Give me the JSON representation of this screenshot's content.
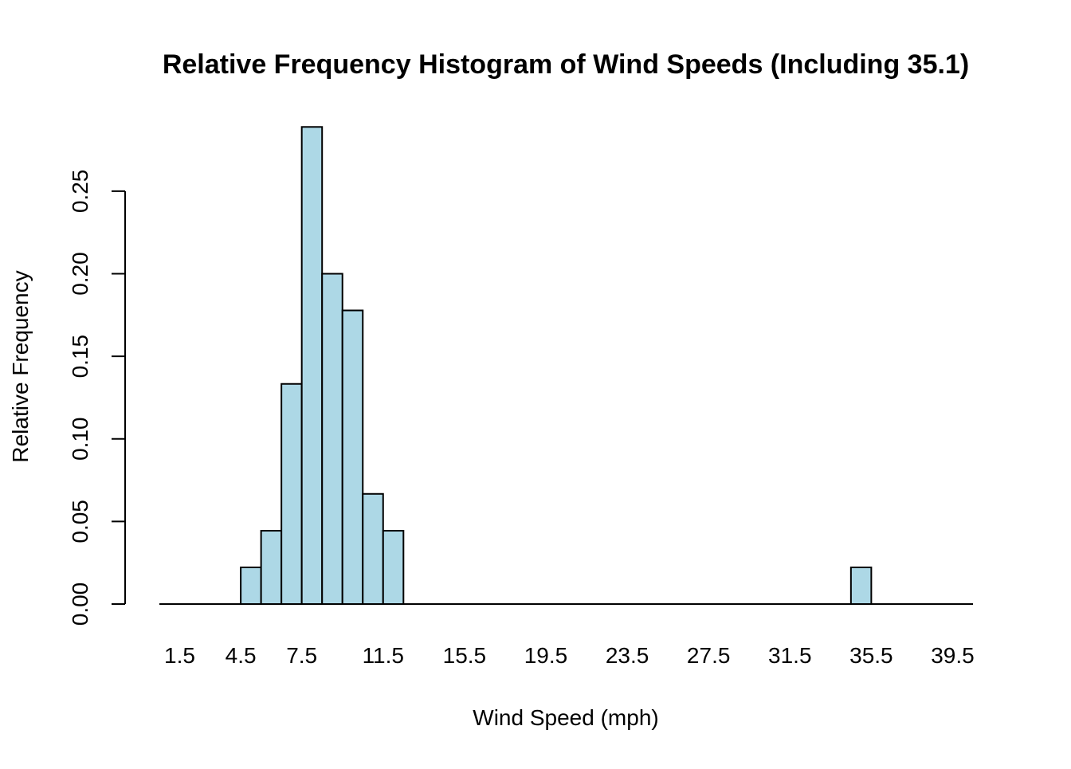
{
  "chart_data": {
    "type": "bar",
    "title": "Relative Frequency Histogram of Wind Speeds (Including 35.1)",
    "xlabel": "Wind Speed (mph)",
    "ylabel": "Relative Frequency",
    "bin_width": 1,
    "xlim": [
      0.5,
      40.5
    ],
    "ylim": [
      0,
      0.29
    ],
    "x_ticks": [
      1.5,
      4.5,
      7.5,
      11.5,
      15.5,
      19.5,
      23.5,
      27.5,
      31.5,
      35.5,
      39.5
    ],
    "x_tick_labels": [
      "1.5",
      "4.5",
      "7.5",
      "11.5",
      "15.5",
      "19.5",
      "23.5",
      "27.5",
      "31.5",
      "35.5",
      "39.5"
    ],
    "y_ticks": [
      0.0,
      0.05,
      0.1,
      0.15,
      0.2,
      0.25
    ],
    "y_tick_labels": [
      "0.00",
      "0.05",
      "0.10",
      "0.15",
      "0.20",
      "0.25"
    ],
    "bins": [
      {
        "start": 4.5,
        "end": 5.5,
        "value": 0.0222
      },
      {
        "start": 5.5,
        "end": 6.5,
        "value": 0.0444
      },
      {
        "start": 6.5,
        "end": 7.5,
        "value": 0.1333
      },
      {
        "start": 7.5,
        "end": 8.5,
        "value": 0.2889
      },
      {
        "start": 8.5,
        "end": 9.5,
        "value": 0.2
      },
      {
        "start": 9.5,
        "end": 10.5,
        "value": 0.1778
      },
      {
        "start": 10.5,
        "end": 11.5,
        "value": 0.0667
      },
      {
        "start": 11.5,
        "end": 12.5,
        "value": 0.0444
      },
      {
        "start": 34.5,
        "end": 35.5,
        "value": 0.0222
      }
    ],
    "bar_color": "#add8e6",
    "bar_border_color": "#000000",
    "grid": false,
    "legend": "none"
  }
}
